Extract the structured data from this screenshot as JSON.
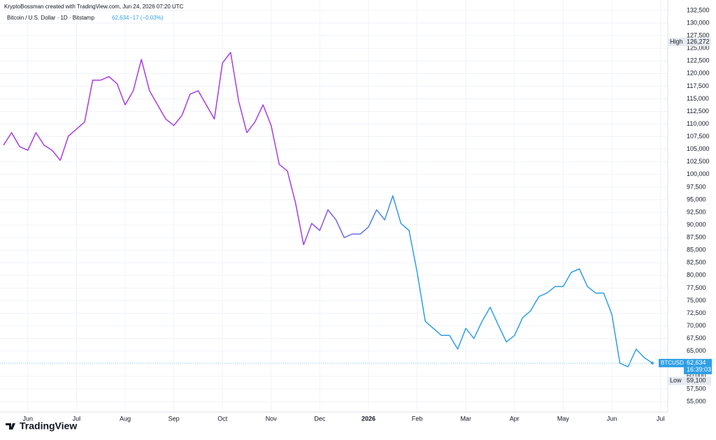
{
  "header": {
    "credit": "KryptoBossman created with TradingView.com, Jun 24, 2026 07:20 UTC",
    "symbol": "Bitcoin / U.S. Dollar · 1D · Bitstamp",
    "price": "62,634",
    "change": "−17 (−0.03%)"
  },
  "chart_data": {
    "type": "line",
    "categories": [
      null,
      null,
      null,
      "Jun",
      null,
      null,
      null,
      null,
      null,
      "Jul",
      null,
      null,
      null,
      null,
      null,
      "Aug",
      null,
      null,
      null,
      null,
      null,
      "Sep",
      null,
      null,
      null,
      null,
      null,
      "Oct",
      null,
      null,
      null,
      null,
      null,
      "Nov",
      null,
      null,
      null,
      null,
      null,
      "Dec",
      null,
      null,
      null,
      null,
      null,
      "2026",
      null,
      null,
      null,
      null,
      null,
      "Feb",
      null,
      null,
      null,
      null,
      null,
      "Mar",
      null,
      null,
      null,
      null,
      null,
      "Apr",
      null,
      null,
      null,
      null,
      null,
      "May",
      null,
      null,
      null,
      null,
      null,
      "Jun",
      null,
      null,
      null,
      null,
      null,
      "Jul"
    ],
    "series": [
      {
        "name": "BTCUSD",
        "color": "#2e9fe6",
        "color_start": "#a63de8",
        "values": [
          105800,
          108300,
          105500,
          104800,
          108300,
          105800,
          104800,
          102800,
          107600,
          109000,
          110400,
          118700,
          118700,
          119400,
          118000,
          113800,
          116600,
          122800,
          116600,
          113800,
          111000,
          109700,
          111700,
          115900,
          116600,
          113800,
          111000,
          122100,
          124200,
          114500,
          108300,
          110400,
          113800,
          109700,
          102000,
          100700,
          94400,
          86100,
          90300,
          88900,
          93000,
          91000,
          87500,
          88200,
          88200,
          89600,
          93000,
          91000,
          95800,
          90300,
          88900,
          80600,
          70900,
          69500,
          68100,
          68100,
          65400,
          69500,
          67500,
          70900,
          73700,
          70200,
          66800,
          68100,
          71600,
          73000,
          75800,
          76500,
          77800,
          77800,
          80600,
          81300,
          77800,
          76500,
          76500,
          72300,
          62600,
          61900,
          65400,
          63700,
          62634,
          null
        ]
      }
    ],
    "ylim": [
      55000,
      132500
    ],
    "yticks": [
      {
        "value": 55000,
        "label": "55,000"
      },
      {
        "value": 57500,
        "label": "57,500"
      },
      {
        "value": 60000,
        "label": "60,000"
      },
      {
        "value": 62500,
        "label": "62,500"
      },
      {
        "value": 65000,
        "label": "65,000"
      },
      {
        "value": 67500,
        "label": "67,500"
      },
      {
        "value": 70000,
        "label": "70,000"
      },
      {
        "value": 72500,
        "label": "72,500"
      },
      {
        "value": 75000,
        "label": "75,000"
      },
      {
        "value": 77500,
        "label": "77,500"
      },
      {
        "value": 80000,
        "label": "80,000"
      },
      {
        "value": 82500,
        "label": "82,500"
      },
      {
        "value": 85000,
        "label": "85,000"
      },
      {
        "value": 87500,
        "label": "87,500"
      },
      {
        "value": 90000,
        "label": "90,000"
      },
      {
        "value": 92500,
        "label": "92,500"
      },
      {
        "value": 95000,
        "label": "95,000"
      },
      {
        "value": 97500,
        "label": "97,500"
      },
      {
        "value": 100000,
        "label": "100,000"
      },
      {
        "value": 102500,
        "label": "102,500"
      },
      {
        "value": 105000,
        "label": "105,000"
      },
      {
        "value": 107500,
        "label": "107,500"
      },
      {
        "value": 110000,
        "label": "110,000"
      },
      {
        "value": 112500,
        "label": "112,500"
      },
      {
        "value": 115000,
        "label": "115,000"
      },
      {
        "value": 117500,
        "label": "117,500"
      },
      {
        "value": 120000,
        "label": "120,000"
      },
      {
        "value": 122500,
        "label": "122,500"
      },
      {
        "value": 125000,
        "label": "125,000"
      },
      {
        "value": 127500,
        "label": "127,500"
      },
      {
        "value": 130000,
        "label": "130,000"
      },
      {
        "value": 132500,
        "label": "132,500"
      }
    ],
    "grid": true,
    "high": {
      "label": "High",
      "value": 126272,
      "value_label": "126,272"
    },
    "low": {
      "label": "Low",
      "value": 59100,
      "value_label": "59,100"
    },
    "last": {
      "value": 62634,
      "value_label": "62,634",
      "countdown": "16:39:03"
    }
  },
  "footer": {
    "brand": "TradingView"
  }
}
